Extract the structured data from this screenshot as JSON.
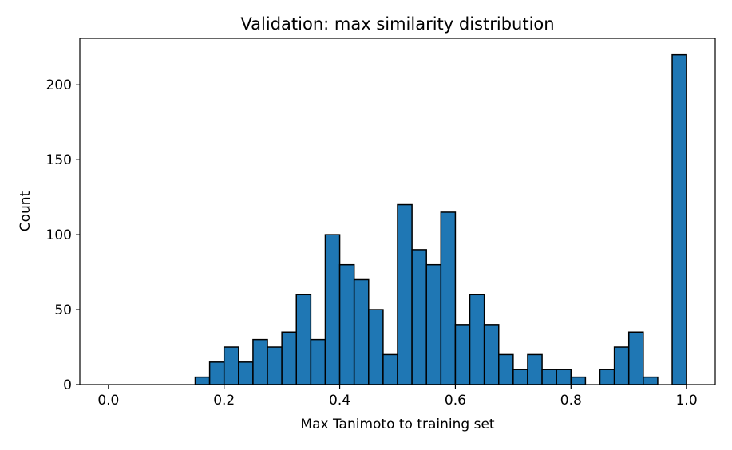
{
  "chart_data": {
    "type": "bar",
    "title": "Validation: max similarity distribution",
    "xlabel": "Max Tanimoto to training set",
    "ylabel": "Count",
    "xlim": [
      -0.0495,
      1.0495
    ],
    "ylim": [
      0,
      231
    ],
    "xticks": [
      0.0,
      0.2,
      0.4,
      0.6,
      0.8,
      1.0
    ],
    "xtick_labels": [
      "0.0",
      "0.2",
      "0.4",
      "0.6",
      "0.8",
      "1.0"
    ],
    "yticks": [
      0,
      50,
      100,
      150,
      200
    ],
    "ytick_labels": [
      "0",
      "50",
      "100",
      "150",
      "200"
    ],
    "bin_width": 0.025,
    "bin_start": 0.0,
    "values": [
      0,
      0,
      0,
      0,
      0,
      0,
      5,
      15,
      25,
      15,
      30,
      25,
      35,
      60,
      30,
      100,
      80,
      70,
      50,
      20,
      120,
      90,
      80,
      115,
      40,
      60,
      40,
      20,
      10,
      20,
      10,
      10,
      5,
      0,
      10,
      25,
      35,
      5,
      0,
      220
    ],
    "bar_color": "#1f77b4",
    "edge_color": "#000000",
    "grid": false,
    "legend": "none"
  }
}
